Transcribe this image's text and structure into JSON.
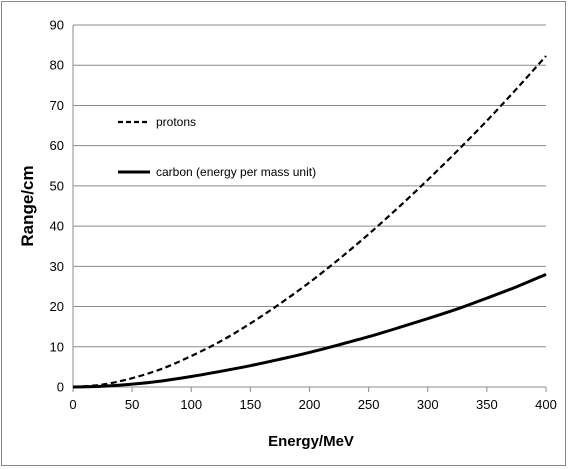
{
  "chart_data": {
    "type": "line",
    "title": "",
    "xlabel": "Energy/MeV",
    "ylabel": "Range/cm",
    "xlim": [
      0,
      400
    ],
    "ylim": [
      0,
      90
    ],
    "xticks": [
      0,
      50,
      100,
      150,
      200,
      250,
      300,
      350,
      400
    ],
    "yticks": [
      0,
      10,
      20,
      30,
      40,
      50,
      60,
      70,
      80,
      90
    ],
    "grid": "horizontal",
    "legend_position": "top-left",
    "series": [
      {
        "name": "protons",
        "style": "dashed",
        "color": "#000000",
        "x": [
          0,
          25,
          50,
          75,
          100,
          125,
          150,
          175,
          200,
          225,
          250,
          275,
          300,
          325,
          350,
          375,
          400
        ],
        "y": [
          0,
          0.6,
          2.2,
          4.5,
          7.7,
          11.4,
          15.8,
          20.7,
          26.0,
          31.8,
          38.0,
          44.6,
          51.5,
          58.7,
          66.2,
          74.1,
          82.3
        ]
      },
      {
        "name": "carbon (energy per mass unit)",
        "style": "solid",
        "color": "#000000",
        "x": [
          0,
          25,
          50,
          75,
          100,
          125,
          150,
          175,
          200,
          225,
          250,
          275,
          300,
          325,
          350,
          375,
          400
        ],
        "y": [
          0,
          0.2,
          0.7,
          1.5,
          2.6,
          3.9,
          5.3,
          6.9,
          8.6,
          10.5,
          12.5,
          14.7,
          17.0,
          19.4,
          22.1,
          24.9,
          28.0
        ]
      }
    ]
  }
}
